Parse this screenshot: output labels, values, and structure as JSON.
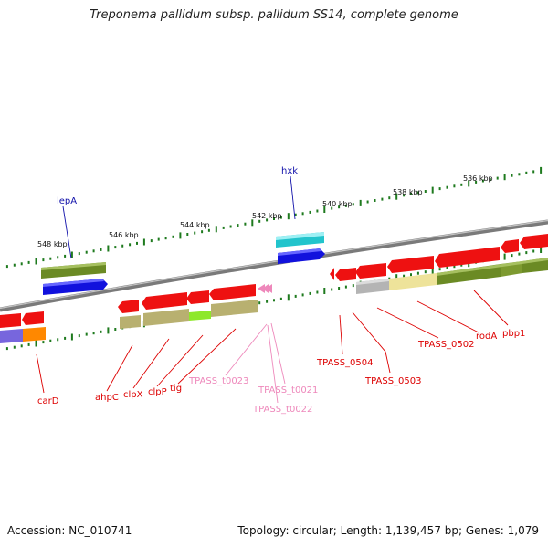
{
  "title": "Treponema pallidum subsp. pallidum SS14, complete genome",
  "accession": "Accession: NC_010741",
  "summary": "Topology: circular; Length: 1,139,457 bp; Genes: 1,079",
  "colors": {
    "backbone": "#888888",
    "tick": "#1e7a1e",
    "gene_red": "#ee1111",
    "gene_blue": "#1111dd",
    "gene_cyan": "#22c4cc",
    "label_red": "#dd0000",
    "label_blue": "#1111aa",
    "label_pink": "#ee88bb",
    "olive": "#6b8a24",
    "khaki": "#b8b070",
    "pale_yellow": "#eee39a",
    "grey": "#b4b4b4",
    "lime": "#8ee82a",
    "purple": "#7766dd",
    "orange": "#ff8800"
  },
  "kbp_labels": [
    "548 kbp",
    "546 kbp",
    "544 kbp",
    "542 kbp",
    "540 kbp",
    "538 kbp",
    "536 kbp"
  ],
  "gene_labels": {
    "top": [
      "lepA",
      "hxk"
    ],
    "bottom_red": [
      "carD",
      "ahpC",
      "clpX",
      "clpP",
      "tig",
      "TPASS_0504",
      "TPASS_0503",
      "TPASS_0502",
      "rodA",
      "pbp1"
    ],
    "bottom_pink": [
      "TPASS_t0023",
      "TPASS_t0021",
      "TPASS_t0022"
    ]
  }
}
